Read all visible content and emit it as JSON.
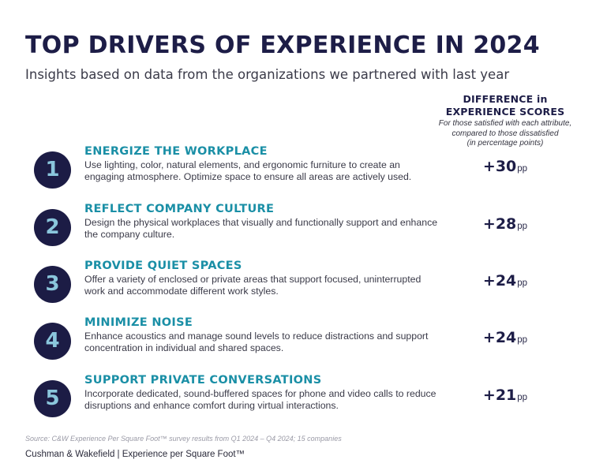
{
  "header": {
    "title": "TOP DRIVERS OF EXPERIENCE IN 2024",
    "subtitle": "Insights based on data from the organizations we partnered with last year"
  },
  "column_header": {
    "line1": "DIFFERENCE in",
    "line2": "EXPERIENCE SCORES",
    "note1": "For those satisfied with each attribute,",
    "note2": "compared to those dissatisfied",
    "note3": "(in percentage points)"
  },
  "drivers": [
    {
      "rank": "1",
      "title": "ENERGIZE THE WORKPLACE",
      "description": "Use lighting, color, natural elements, and ergonomic furniture to create an engaging atmosphere. Optimize space to ensure all areas are actively used.",
      "score": "+30",
      "unit": "pp"
    },
    {
      "rank": "2",
      "title": "REFLECT COMPANY CULTURE",
      "description": "Design the physical workplaces that visually and functionally support and enhance the company culture.",
      "score": "+28",
      "unit": "pp"
    },
    {
      "rank": "3",
      "title": "PROVIDE QUIET SPACES",
      "description": "Offer a variety of enclosed or private areas that support focused, uninterrupted work and accommodate different work styles.",
      "score": "+24",
      "unit": "pp"
    },
    {
      "rank": "4",
      "title": "MINIMIZE NOISE",
      "description": "Enhance acoustics and manage sound levels to reduce distractions and support concentration in individual and shared spaces.",
      "score": "+24",
      "unit": "pp"
    },
    {
      "rank": "5",
      "title": "SUPPORT PRIVATE CONVERSATIONS",
      "description": "Incorporate dedicated, sound-buffered spaces for phone and video calls to reduce disruptions and enhance comfort during virtual interactions.",
      "score": "+21",
      "unit": "pp"
    }
  ],
  "source": "Source: C&W Experience Per Square Foot™ survey results from Q1 2024 – Q4 2024; 15 companies",
  "footer": "Cushman & Wakefield | Experience per Square Foot™",
  "colors": {
    "navy": "#1d1d47",
    "teal": "#1a8fa6",
    "circle_number": "#8ac6dc"
  }
}
